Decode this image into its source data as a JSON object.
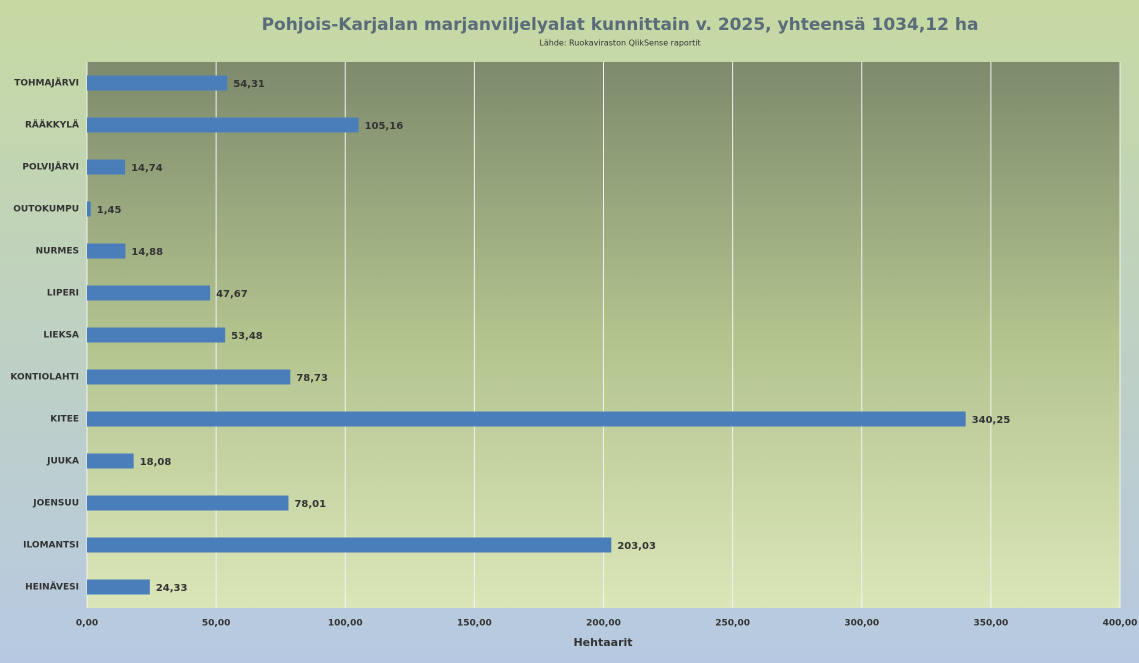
{
  "chart_data": {
    "type": "bar",
    "orientation": "horizontal",
    "title": "Pohjois-Karjalan marjanviljelyalat kunnittain v. 2025, yhteensä 1034,12 ha",
    "subtitle": "Lähde: Ruokaviraston QlikSense raportit",
    "x_label": "Hehtaarit",
    "categories": [
      "TOHMAJÄRVI",
      "RÄÄKKYLÄ",
      "POLVIJÄRVI",
      "OUTOKUMPU",
      "NURMES",
      "LIPERI",
      "LIEKSA",
      "KONTIOLAHTI",
      "KITEE",
      "JUUKA",
      "JOENSUU",
      "ILOMANTSI",
      "HEINÄVESI"
    ],
    "values": [
      54.31,
      105.16,
      14.74,
      1.45,
      14.88,
      47.67,
      53.48,
      78.73,
      340.25,
      18.08,
      78.01,
      203.03,
      24.33
    ],
    "value_labels": [
      "54,31",
      "105,16",
      "14,74",
      "1,45",
      "14,88",
      "47,67",
      "53,48",
      "78,73",
      "340,25",
      "18,08",
      "78,01",
      "203,03",
      "24,33"
    ],
    "color": "#4a7ebb",
    "xlim": [
      0,
      400
    ],
    "xticks": [
      {
        "value": 0,
        "label": "0,00"
      },
      {
        "value": 50,
        "label": "50,00"
      },
      {
        "value": 100,
        "label": "100,00"
      },
      {
        "value": 150,
        "label": "150,00"
      },
      {
        "value": 200,
        "label": "200,00"
      },
      {
        "value": 250,
        "label": "250,00"
      },
      {
        "value": 300,
        "label": "300,00"
      },
      {
        "value": 350,
        "label": "350,00"
      },
      {
        "value": 400,
        "label": "400,00"
      }
    ],
    "grid": true
  }
}
